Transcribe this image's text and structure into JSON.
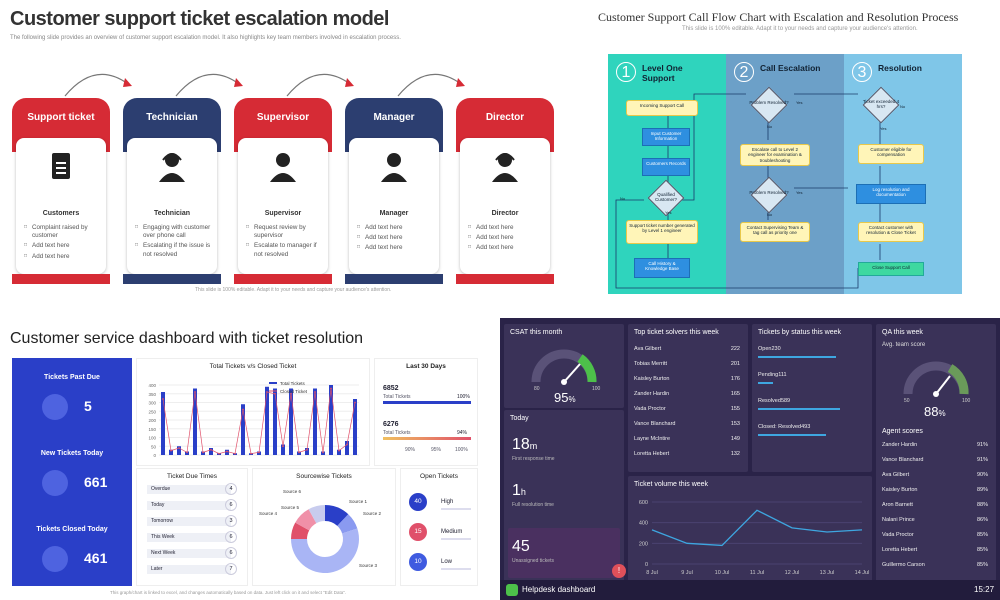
{
  "escalation": {
    "title": "Customer support ticket escalation model",
    "subtitle": "The following slide provides an overview of customer support escalation model. It also highlights key team members involved in escalation process.",
    "footer": "This slide is 100% editable. Adapt it to your needs and capture your audience's attention.",
    "cards": [
      {
        "header": "Support ticket",
        "name": "Customers",
        "color": "#d62b35",
        "icon": "clipboard-icon",
        "items": [
          "Complaint raised by customer",
          "Add text here",
          "Add text here"
        ]
      },
      {
        "header": "Technician",
        "name": "Technician",
        "color": "#2c3e70",
        "icon": "headset-person-icon",
        "items": [
          "Engaging with customer over phone call",
          "Escalating if the issue is not resolved"
        ]
      },
      {
        "header": "Supervisor",
        "name": "Supervisor",
        "color": "#d62b35",
        "icon": "person-icon",
        "items": [
          "Request review by supervisor",
          "Escalate to manager if not resolved"
        ]
      },
      {
        "header": "Manager",
        "name": "Manager",
        "color": "#2c3e70",
        "icon": "woman-icon",
        "items": [
          "Add text here",
          "Add text here",
          "Add text here"
        ]
      },
      {
        "header": "Director",
        "name": "Director",
        "color": "#d62b35",
        "icon": "woman-headset-icon",
        "items": [
          "Add text here",
          "Add text here",
          "Add text here"
        ]
      }
    ]
  },
  "flow": {
    "title": "Customer Support Call Flow Chart with Escalation and Resolution Process",
    "subtitle": "This slide is 100% editable. Adapt it to your needs and capture your audience's attention.",
    "lanes": [
      {
        "num": "1",
        "label": "Level One Support",
        "color": "#2fd4bd"
      },
      {
        "num": "2",
        "label": "Call Escalation",
        "color": "#6ca0c8"
      },
      {
        "num": "3",
        "label": "Resolution",
        "color": "#7fc6e8"
      }
    ],
    "nodes": {
      "incoming": "Incoming Support Call",
      "input": "Input Customer Information",
      "records": "Customers Records",
      "qualified": "Qualified Customer?",
      "support_ticket": "Support ticket number generated by Level 1 engineer",
      "call_history": "Call History & Knowledge Base",
      "problem1": "Problem Resolved?",
      "escalate_l2": "Escalate call to Level 2 engineer for examination & troubleshooting",
      "problem2": "Problem Resolved?",
      "contact_team": "Contact Supervising Team & tag call as priority one",
      "ticket_exceeded": "Ticket exceeded 4 hrs?",
      "eligible": "Customer eligible for compensation",
      "log": "Log resolution and documentation",
      "contact_customer": "Contact customer with resolution & Close Ticket",
      "close": "Close Support Call",
      "yes": "Yes",
      "no": "No"
    }
  },
  "service": {
    "title": "Customer service dashboard with ticket resolution",
    "kpis": [
      {
        "label": "Tickets Past Due",
        "value": "5"
      },
      {
        "label": "New Tickets Today",
        "value": "661"
      },
      {
        "label": "Tickets Closed Today",
        "value": "461"
      }
    ],
    "chart_title": "Total Tickets v/s Closed Ticket",
    "legend_total": "Total Tickets",
    "legend_closed": "Closed Ticket",
    "y_ticks": [
      "400",
      "350",
      "300",
      "250",
      "200",
      "150",
      "100",
      "50",
      "0"
    ],
    "last30": {
      "title": "Last 30 Days",
      "v1": "6852",
      "l1": "Total Tickets",
      "p1": "100%",
      "v2": "6276",
      "l2": "Total Tickets",
      "p2": "94%",
      "axis": [
        "90%",
        "95%",
        "100%"
      ]
    },
    "due_title": "Ticket Due Times",
    "due": [
      {
        "label": "Overdue",
        "n": "4"
      },
      {
        "label": "Today",
        "n": "6"
      },
      {
        "label": "Tomorrow",
        "n": "3"
      },
      {
        "label": "This Week",
        "n": "6"
      },
      {
        "label": "Next Week",
        "n": "6"
      },
      {
        "label": "Later",
        "n": "7"
      }
    ],
    "source_title": "Sourcewise Tickets",
    "sources": [
      "Source 6",
      "Source 5",
      "Source 4",
      "Source 1",
      "Source 2",
      "Source 3"
    ],
    "open_title": "Open Tickets",
    "open": [
      {
        "n": "40",
        "label": "High",
        "color": "#2a3fc8"
      },
      {
        "n": "15",
        "label": "Medium",
        "color": "#e0506a"
      },
      {
        "n": "10",
        "label": "Low",
        "color": "#3f5be0"
      }
    ],
    "footer": "This graph/chart is linked to excel, and changes automatically based on data. Just left click on it and select \"Edit Data\"."
  },
  "helpdesk": {
    "csat_title": "CSAT this month",
    "csat_value": "95",
    "csat_unit": "%",
    "csat_min": "80",
    "csat_max": "100",
    "today_title": "Today",
    "first_response": "18",
    "first_response_unit": "m",
    "first_response_label": "First response time",
    "full_resolution": "1",
    "full_resolution_unit": "h",
    "full_resolution_label": "Full resolution time",
    "unassigned": "45",
    "unassigned_label": "Unassigned tickets",
    "solvers_title": "Top ticket solvers this week",
    "solvers": [
      {
        "name": "Ava Gilbert",
        "n": "222"
      },
      {
        "name": "Tobias Merritt",
        "n": "201"
      },
      {
        "name": "Kaisley Burton",
        "n": "176"
      },
      {
        "name": "Zander Hardin",
        "n": "165"
      },
      {
        "name": "Vada Proctor",
        "n": "155"
      },
      {
        "name": "Vance Blanchard",
        "n": "153"
      },
      {
        "name": "Layne McIntire",
        "n": "149"
      },
      {
        "name": "Loretta Hebert",
        "n": "132"
      }
    ],
    "status_title": "Tickets by status this week",
    "status": [
      {
        "label": "Open",
        "n": "230",
        "frac": 0.92
      },
      {
        "label": "Pending",
        "n": "111",
        "frac": 0.18
      },
      {
        "label": "Resolved",
        "n": "589",
        "frac": 0.97
      },
      {
        "label": "Closed: Resolved",
        "n": "493",
        "frac": 0.8
      }
    ],
    "qa_title": "QA this week",
    "qa_sub": "Avg. team score",
    "qa_value": "88",
    "qa_unit": "%",
    "qa_min": "50",
    "qa_max": "100",
    "agent_title": "Agent scores",
    "agents": [
      {
        "name": "Zander Hardin",
        "p": "91%"
      },
      {
        "name": "Vance Blanchard",
        "p": "91%"
      },
      {
        "name": "Ava Gilbert",
        "p": "90%"
      },
      {
        "name": "Kaisley Burton",
        "p": "89%"
      },
      {
        "name": "Aron Barnett",
        "p": "88%"
      },
      {
        "name": "Nalani Prince",
        "p": "86%"
      },
      {
        "name": "Vada Proctor",
        "p": "85%"
      },
      {
        "name": "Loretta Hebert",
        "p": "85%"
      },
      {
        "name": "Guillermo Carson",
        "p": "85%"
      }
    ],
    "volume_title": "Ticket volume this week",
    "volume_y": [
      "600",
      "400",
      "200",
      "0"
    ],
    "brand": "Helpdesk dashboard",
    "time": "15:27",
    "alert": "!"
  },
  "chart_data": [
    {
      "type": "bar",
      "title": "Total Tickets v/s Closed Ticket",
      "ylim": [
        0,
        400
      ],
      "series": [
        {
          "name": "Total Tickets",
          "values": [
            360,
            30,
            50,
            20,
            380,
            20,
            40,
            10,
            30,
            10,
            290,
            10,
            20,
            390,
            380,
            60,
            380,
            20,
            40,
            380,
            20,
            400,
            30,
            80,
            320
          ]
        },
        {
          "name": "Closed Ticket",
          "values": [
            320,
            25,
            40,
            15,
            360,
            15,
            30,
            8,
            20,
            8,
            260,
            8,
            15,
            360,
            350,
            50,
            350,
            15,
            30,
            360,
            15,
            380,
            25,
            60,
            300
          ]
        }
      ]
    },
    {
      "type": "line",
      "title": "Ticket volume this week",
      "categories": [
        "8 Jul",
        "9 Jul",
        "10 Jul",
        "11 Jul",
        "12 Jul",
        "13 Jul",
        "14 Jul"
      ],
      "values": [
        330,
        200,
        180,
        520,
        350,
        310,
        330
      ],
      "ylim": [
        0,
        600
      ]
    },
    {
      "type": "pie",
      "title": "Sourcewise Tickets",
      "labels": [
        "Source 1",
        "Source 2",
        "Source 3",
        "Source 4",
        "Source 5",
        "Source 6"
      ],
      "values": [
        12,
        8,
        55,
        8,
        9,
        8
      ]
    }
  ]
}
